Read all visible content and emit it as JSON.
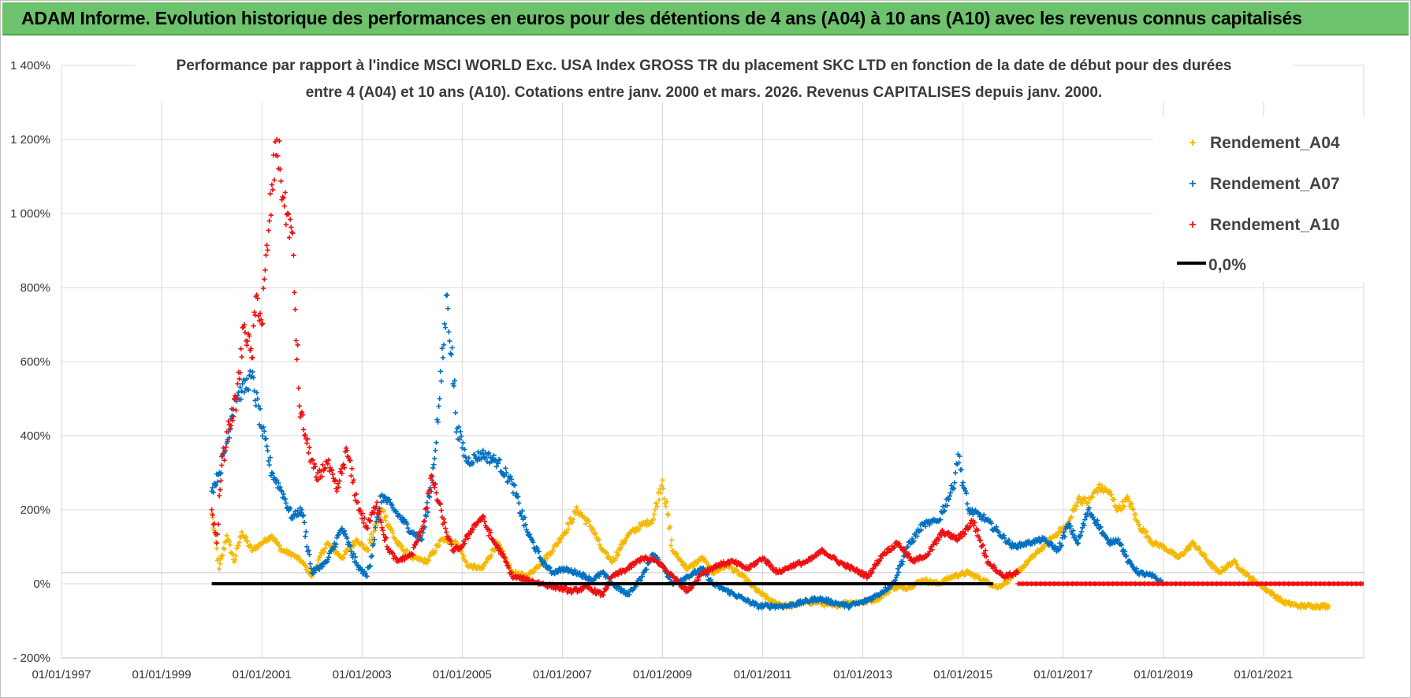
{
  "banner": {
    "title": "ADAM Informe. Evolution historique des performances en euros pour des détentions de 4 ans (A04) à 10 ans (A10) avec les revenus connus capitalisés"
  },
  "colors": {
    "banner_bg": "#6cc36c",
    "A04": "#f5b800",
    "A07": "#0070c0",
    "A10": "#ee1111",
    "zero": "#000000"
  },
  "chart_data": {
    "type": "scatter",
    "title_line1": "Performance par rapport à l'indice MSCI WORLD Exc. USA Index GROSS TR  du placement SKC LTD en fonction de la date de début pour des durées",
    "title_line2": "entre 4 (A04) et 10 ans (A10). Cotations entre janv. 2000 et mars. 2026. Revenus CAPITALISES depuis janv. 2000.",
    "ylabel_unit": "%",
    "ylim": [
      -200,
      1400
    ],
    "xlim": [
      1997.0,
      2023.0
    ],
    "y_ticks": [
      "- 200%",
      "0%",
      "200%",
      "400%",
      "600%",
      "800%",
      "1 000%",
      "1 200%",
      "1 400%"
    ],
    "x_ticks": [
      "01/01/1997",
      "01/01/1999",
      "01/01/2001",
      "01/01/2003",
      "01/01/2005",
      "01/01/2007",
      "01/01/2009",
      "01/01/2011",
      "01/01/2013",
      "01/01/2015",
      "01/01/2017",
      "01/01/2019",
      "01/01/2021"
    ],
    "legend_position": "top-right",
    "series": [
      {
        "name": "Rendement_A04",
        "color_key": "A04",
        "x": [
          2000.0,
          2000.15,
          2000.3,
          2000.45,
          2000.6,
          2000.8,
          2001.0,
          2001.2,
          2001.4,
          2001.6,
          2001.8,
          2002.0,
          2002.3,
          2002.6,
          2002.9,
          2003.1,
          2003.4,
          2003.7,
          2004.0,
          2004.3,
          2004.6,
          2004.9,
          2005.1,
          2005.4,
          2005.7,
          2006.0,
          2006.3,
          2006.6,
          2006.8,
          2007.0,
          2007.3,
          2007.6,
          2007.8,
          2008.0,
          2008.3,
          2008.6,
          2008.8,
          2009.0,
          2009.2,
          2009.5,
          2009.8,
          2010.0,
          2010.3,
          2010.6,
          2010.9,
          2011.2,
          2011.5,
          2011.8,
          2012.1,
          2012.4,
          2012.7,
          2013.0,
          2013.3,
          2013.6,
          2013.9,
          2014.2,
          2014.5,
          2014.8,
          2015.1,
          2015.4,
          2015.7,
          2016.0,
          2016.3,
          2016.6,
          2016.9,
          2017.1,
          2017.3,
          2017.5,
          2017.7,
          2017.9,
          2018.1,
          2018.3,
          2018.5,
          2018.8,
          2019.0,
          2019.3,
          2019.6,
          2019.9,
          2020.1,
          2020.4,
          2020.7,
          2020.9,
          2021.1,
          2021.4,
          2021.7,
          2022.0,
          2022.3
        ],
        "y": [
          190,
          40,
          130,
          60,
          140,
          90,
          110,
          130,
          90,
          80,
          60,
          20,
          110,
          70,
          120,
          90,
          200,
          110,
          70,
          60,
          120,
          110,
          50,
          40,
          110,
          30,
          20,
          60,
          90,
          130,
          200,
          150,
          90,
          60,
          130,
          160,
          170,
          280,
          90,
          40,
          70,
          30,
          50,
          20,
          -20,
          -50,
          -60,
          -50,
          -50,
          -60,
          -50,
          -50,
          -40,
          -10,
          -10,
          10,
          0,
          20,
          30,
          10,
          -10,
          20,
          60,
          100,
          140,
          160,
          230,
          220,
          260,
          250,
          200,
          230,
          160,
          110,
          100,
          70,
          110,
          60,
          30,
          60,
          20,
          0,
          -20,
          -50,
          -60,
          -60,
          -60
        ]
      },
      {
        "name": "Rendement_A07",
        "color_key": "A07",
        "x": [
          2000.0,
          2000.15,
          2000.3,
          2000.45,
          2000.6,
          2000.8,
          2001.0,
          2001.2,
          2001.4,
          2001.6,
          2001.8,
          2002.0,
          2002.3,
          2002.6,
          2002.9,
          2003.1,
          2003.4,
          2003.7,
          2004.0,
          2004.2,
          2004.4,
          2004.55,
          2004.7,
          2004.9,
          2005.1,
          2005.4,
          2005.7,
          2006.0,
          2006.3,
          2006.6,
          2006.8,
          2007.0,
          2007.3,
          2007.6,
          2007.8,
          2008.0,
          2008.3,
          2008.6,
          2008.8,
          2009.0,
          2009.2,
          2009.5,
          2009.8,
          2010.0,
          2010.3,
          2010.6,
          2010.9,
          2011.2,
          2011.5,
          2011.8,
          2012.1,
          2012.4,
          2012.7,
          2013.0,
          2013.3,
          2013.6,
          2013.9,
          2014.2,
          2014.5,
          2014.8,
          2014.9,
          2015.1,
          2015.4,
          2015.7,
          2016.0,
          2016.3,
          2016.6,
          2016.9,
          2017.1,
          2017.3,
          2017.5,
          2017.7,
          2017.9,
          2018.1,
          2018.3,
          2018.5,
          2018.8,
          2019.0
        ],
        "y": [
          250,
          300,
          380,
          500,
          520,
          560,
          420,
          300,
          250,
          180,
          200,
          30,
          60,
          150,
          50,
          20,
          240,
          190,
          140,
          120,
          280,
          500,
          780,
          420,
          330,
          350,
          330,
          270,
          140,
          60,
          30,
          40,
          30,
          10,
          30,
          0,
          -30,
          20,
          80,
          50,
          0,
          20,
          40,
          0,
          -20,
          -40,
          -60,
          -60,
          -60,
          -50,
          -40,
          -50,
          -60,
          -50,
          -30,
          0,
          100,
          160,
          170,
          260,
          350,
          200,
          180,
          140,
          100,
          110,
          120,
          90,
          160,
          110,
          200,
          160,
          110,
          120,
          60,
          30,
          20,
          0
        ]
      },
      {
        "name": "Rendement_A10",
        "color_key": "A10",
        "x": [
          2000.0,
          2000.1,
          2000.2,
          2000.35,
          2000.5,
          2000.65,
          2000.8,
          2000.9,
          2001.0,
          2001.15,
          2001.3,
          2001.45,
          2001.6,
          2001.75,
          2001.9,
          2002.1,
          2002.3,
          2002.5,
          2002.7,
          2002.9,
          2003.1,
          2003.3,
          2003.5,
          2003.7,
          2004.0,
          2004.2,
          2004.4,
          2004.6,
          2004.8,
          2005.0,
          2005.2,
          2005.4,
          2005.6,
          2005.8,
          2006.0,
          2006.3,
          2006.6,
          2006.9,
          2007.2,
          2007.5,
          2007.8,
          2008.0,
          2008.3,
          2008.6,
          2008.9,
          2009.2,
          2009.5,
          2009.8,
          2010.1,
          2010.4,
          2010.7,
          2011.0,
          2011.3,
          2011.6,
          2011.9,
          2012.2,
          2012.5,
          2012.8,
          2013.1,
          2013.4,
          2013.7,
          2014.0,
          2014.3,
          2014.6,
          2014.9,
          2015.2,
          2015.5,
          2015.8,
          2016.1
        ],
        "y": [
          200,
          110,
          320,
          430,
          500,
          700,
          610,
          780,
          700,
          980,
          1200,
          1020,
          950,
          480,
          380,
          280,
          330,
          250,
          360,
          220,
          150,
          220,
          100,
          60,
          80,
          150,
          290,
          180,
          90,
          100,
          150,
          180,
          120,
          80,
          20,
          10,
          0,
          -10,
          -20,
          -10,
          -30,
          20,
          40,
          70,
          60,
          20,
          -20,
          30,
          50,
          60,
          40,
          70,
          30,
          50,
          60,
          90,
          60,
          40,
          20,
          80,
          110,
          60,
          80,
          140,
          120,
          170,
          60,
          20,
          30
        ]
      }
    ],
    "flat_tail_A10": {
      "x_start": 2016.1,
      "x_end": 2023.0,
      "y": 0
    },
    "zero_line": {
      "name": "0,0%",
      "x_start": 2000.0,
      "x_end": 2015.6,
      "y": 0
    }
  }
}
